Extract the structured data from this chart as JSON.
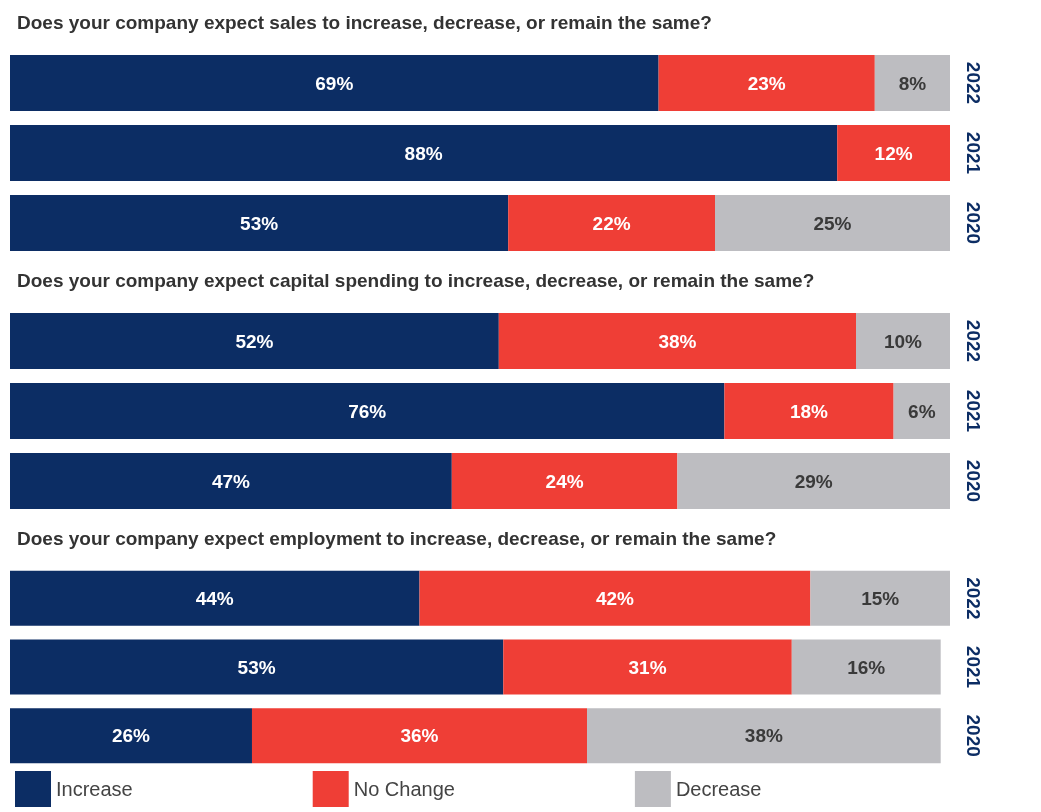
{
  "chart_data": [
    {
      "type": "bar",
      "title": "Does your company expect sales to increase, decrease, or remain the same?",
      "orientation": "horizontal",
      "stacked": true,
      "categories": [
        "2022",
        "2021",
        "2020"
      ],
      "tick_labels": "y",
      "legend": false,
      "series": [
        {
          "color": "#0c2d64",
          "values": [
            69,
            88,
            53
          ],
          "value_labels": [
            "69%",
            "88%",
            "53%"
          ]
        },
        {
          "color": "#ef3e36",
          "values": [
            23,
            12,
            22
          ],
          "value_labels": [
            "23%",
            "12%",
            "22%"
          ]
        },
        {
          "color": "#bdbdc1",
          "values": [
            8,
            0,
            25
          ],
          "value_labels": [
            "8%",
            null,
            "25%"
          ]
        }
      ]
    },
    {
      "type": "bar",
      "title": "Does your company expect capital spending to increase, decrease, or remain the same?",
      "orientation": "horizontal",
      "stacked": true,
      "categories": [
        "2022",
        "2021",
        "2020"
      ],
      "tick_labels": "y",
      "legend": false,
      "series": [
        {
          "color": "#0c2d64",
          "values": [
            52,
            76,
            47
          ],
          "value_labels": [
            "52%",
            "76%",
            "47%"
          ]
        },
        {
          "color": "#ef3e36",
          "values": [
            38,
            18,
            24
          ],
          "value_labels": [
            "38%",
            "18%",
            "24%"
          ]
        },
        {
          "color": "#bdbdc1",
          "values": [
            10,
            6,
            29
          ],
          "value_labels": [
            "10%",
            "6%",
            "29%"
          ]
        }
      ]
    },
    {
      "type": "bar",
      "title": "Does your company expect employment to increase, decrease, or remain the same?",
      "orientation": "horizontal",
      "stacked": true,
      "categories": [
        "2022",
        "2021",
        "2020"
      ],
      "tick_labels": "y",
      "legend": "bottom",
      "series": [
        {
          "name": "Increase",
          "color": "#0c2d64",
          "values": [
            44,
            53,
            26
          ],
          "value_labels": [
            "44%",
            "53%",
            "26%"
          ]
        },
        {
          "name": "No Change",
          "color": "#ef3e36",
          "values": [
            42,
            31,
            36
          ],
          "value_labels": [
            "42%",
            "31%",
            "36%"
          ]
        },
        {
          "name": "Decrease",
          "color": "#bdbdc1",
          "values": [
            15,
            16,
            38
          ],
          "value_labels": [
            "15%",
            "16%",
            "38%"
          ]
        }
      ]
    }
  ]
}
